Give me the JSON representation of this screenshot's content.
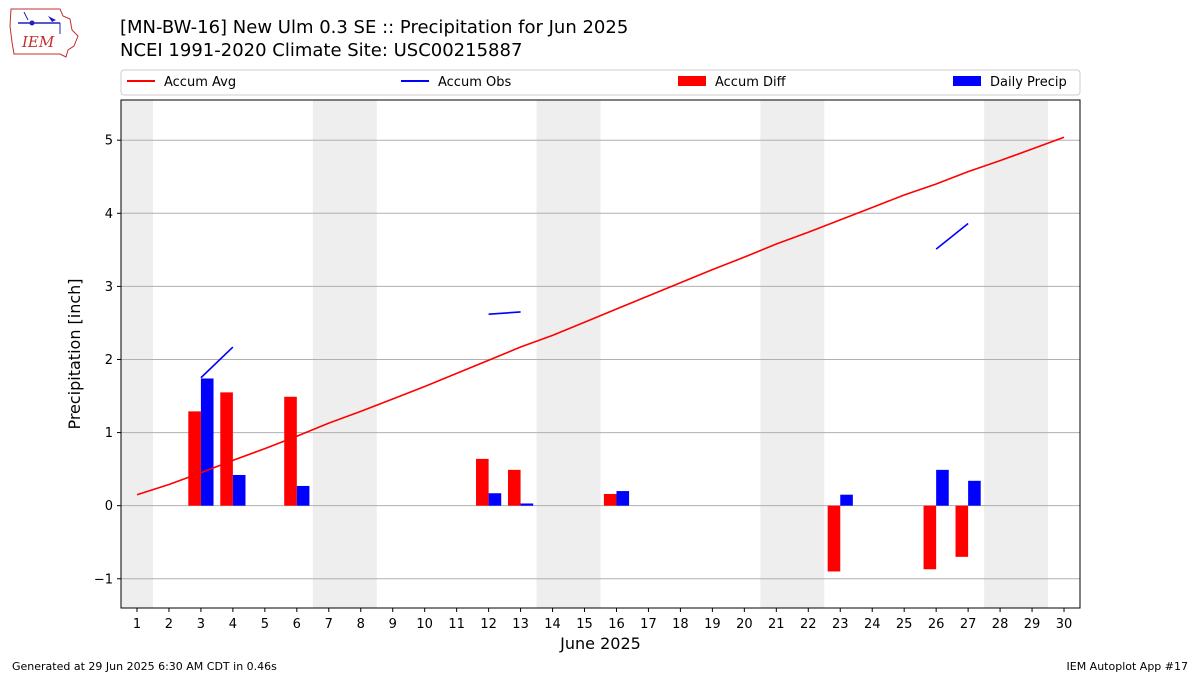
{
  "header": {
    "title_line1": "[MN-BW-16] New Ulm 0.3 SE :: Precipitation for Jun 2025",
    "title_line2": "NCEI 1991-2020 Climate Site: USC00215887",
    "logo_text": "IEM"
  },
  "footer": {
    "generated": "Generated at 29 Jun 2025 6:30 AM CDT in 0.46s",
    "app": "IEM Autoplot App #17"
  },
  "colors": {
    "accum_avg": "#ff0000",
    "accum_obs": "#0000ff",
    "accum_diff": "#ff0000",
    "daily_precip": "#0000ff",
    "weekend_band": "#eeeeee",
    "grid": "#b0b0b0"
  },
  "chart_data": {
    "type": "bar",
    "xlabel": "June 2025",
    "ylabel": "Precipitation [inch]",
    "xlim": [
      0.5,
      30.5
    ],
    "ylim": [
      -1.4,
      5.55
    ],
    "yticks": [
      -1,
      0,
      1,
      2,
      3,
      4,
      5
    ],
    "ytick_labels": [
      "−1",
      "0",
      "1",
      "2",
      "3",
      "4",
      "5"
    ],
    "xticks": [
      1,
      2,
      3,
      4,
      5,
      6,
      7,
      8,
      9,
      10,
      11,
      12,
      13,
      14,
      15,
      16,
      17,
      18,
      19,
      20,
      21,
      22,
      23,
      24,
      25,
      26,
      27,
      28,
      29,
      30
    ],
    "grid": "horizontal",
    "legend_position": "top",
    "shaded_days": [
      [
        0.5,
        1.5
      ],
      [
        6.5,
        8.5
      ],
      [
        13.5,
        15.5
      ],
      [
        20.5,
        22.5
      ],
      [
        27.5,
        29.5
      ]
    ],
    "legend": [
      "Accum Avg",
      "Accum Obs",
      "Accum Diff",
      "Daily Precip"
    ],
    "series": [
      {
        "name": "Accum Avg",
        "kind": "line",
        "x": [
          1,
          2,
          3,
          4,
          5,
          6,
          7,
          8,
          9,
          10,
          11,
          12,
          13,
          14,
          15,
          16,
          17,
          18,
          19,
          20,
          21,
          22,
          23,
          24,
          25,
          26,
          27,
          28,
          29,
          30
        ],
        "values": [
          0.15,
          0.29,
          0.45,
          0.62,
          0.78,
          0.95,
          1.13,
          1.29,
          1.46,
          1.63,
          1.81,
          1.99,
          2.17,
          2.33,
          2.51,
          2.69,
          2.87,
          3.05,
          3.23,
          3.4,
          3.58,
          3.74,
          3.91,
          4.08,
          4.25,
          4.4,
          4.57,
          4.72,
          4.88,
          5.04
        ]
      },
      {
        "name": "Accum Obs",
        "kind": "segments",
        "segments": [
          {
            "x": [
              3,
              4
            ],
            "values": [
              1.75,
              2.17
            ]
          },
          {
            "x": [
              12,
              13
            ],
            "values": [
              2.62,
              2.65
            ]
          },
          {
            "x": [
              26,
              27
            ],
            "values": [
              3.51,
              3.86
            ]
          }
        ]
      },
      {
        "name": "Accum Diff",
        "kind": "bar",
        "x": [
          3,
          4,
          6,
          12,
          13,
          16,
          23,
          26,
          27
        ],
        "values": [
          1.29,
          1.55,
          1.49,
          0.64,
          0.49,
          0.16,
          -0.9,
          -0.87,
          -0.7
        ]
      },
      {
        "name": "Daily Precip",
        "kind": "bar",
        "x": [
          3,
          4,
          6,
          12,
          13,
          16,
          23,
          26,
          27
        ],
        "values": [
          1.74,
          0.42,
          0.27,
          0.17,
          0.03,
          0.2,
          0.15,
          0.49,
          0.34
        ]
      }
    ]
  }
}
